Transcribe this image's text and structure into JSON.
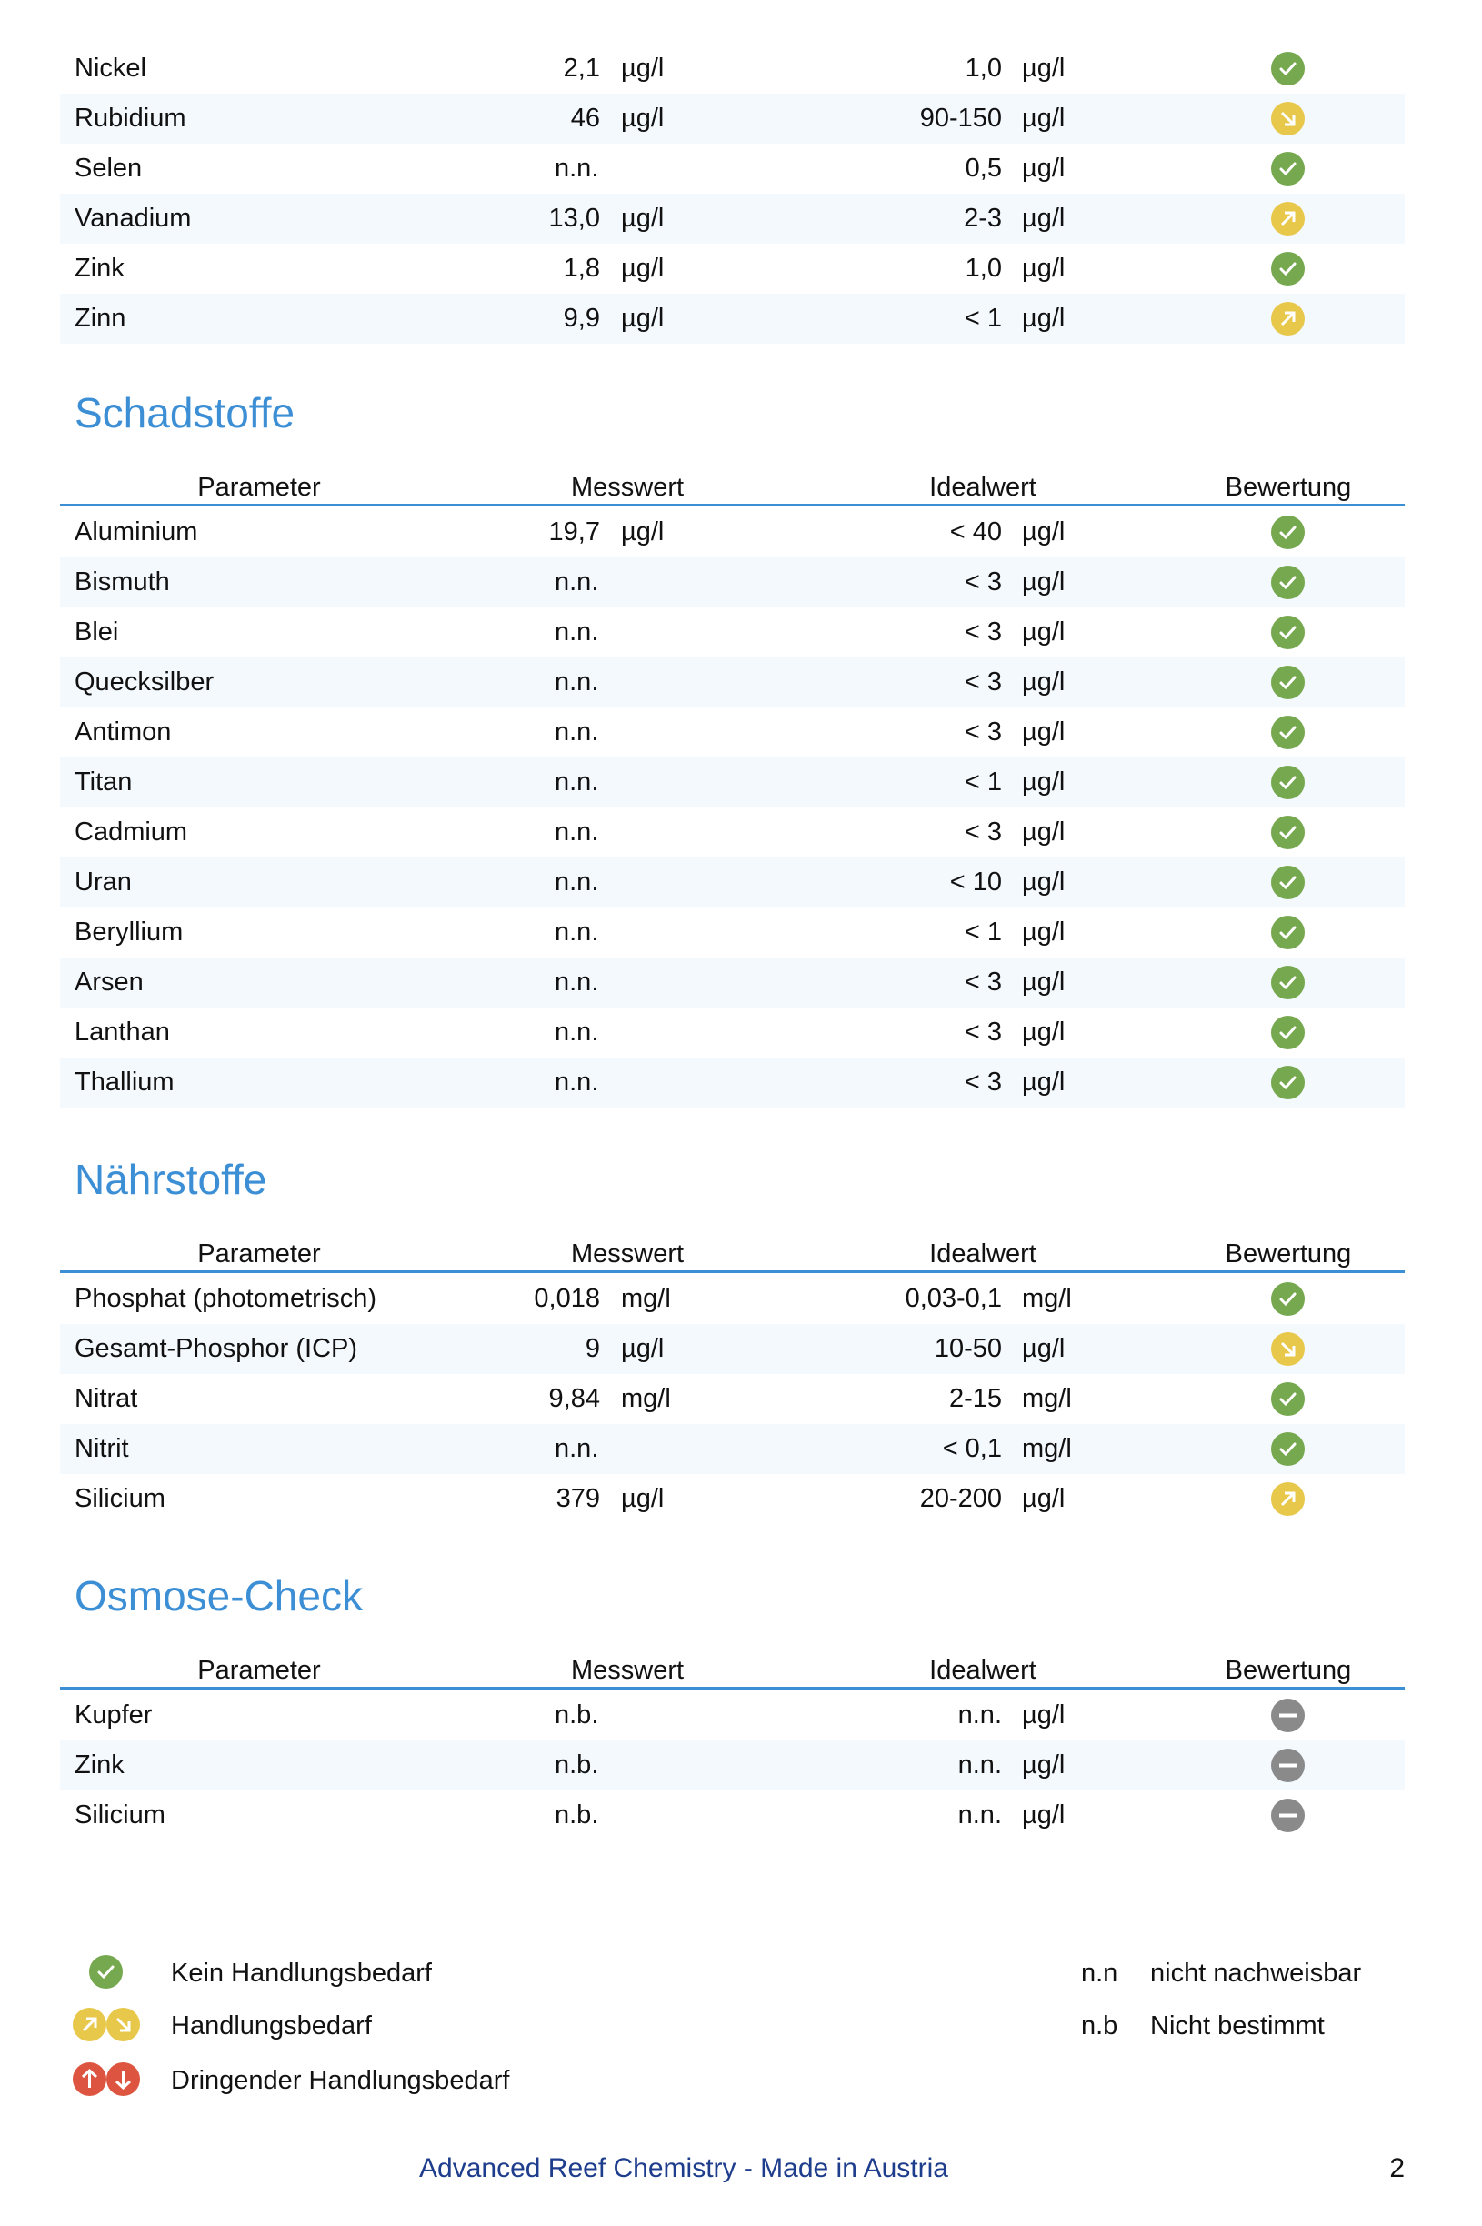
{
  "colors": {
    "accent": "#3c8fd5",
    "ok": "#76a94f",
    "warn": "#e8c84a",
    "urgent": "#dd5540",
    "none": "#8a8a8a",
    "footer": "#1e3d8c"
  },
  "headers": {
    "parameter": "Parameter",
    "messwert": "Messwert",
    "idealwert": "Idealwert",
    "bewertung": "Bewertung"
  },
  "sections": [
    {
      "title": "",
      "show_header": false,
      "rows": [
        {
          "name": "Nickel",
          "value": "2,1",
          "unit": "µg/l",
          "ideal": "1,0",
          "ideal_unit": "µg/l",
          "status": "ok"
        },
        {
          "name": "Rubidium",
          "value": "46",
          "unit": "µg/l",
          "ideal": "90-150",
          "ideal_unit": "µg/l",
          "status": "down"
        },
        {
          "name": "Selen",
          "value": "n.n.",
          "unit": "",
          "ideal": "0,5",
          "ideal_unit": "µg/l",
          "status": "ok"
        },
        {
          "name": "Vanadium",
          "value": "13,0",
          "unit": "µg/l",
          "ideal": "2-3",
          "ideal_unit": "µg/l",
          "status": "up"
        },
        {
          "name": "Zink",
          "value": "1,8",
          "unit": "µg/l",
          "ideal": "1,0",
          "ideal_unit": "µg/l",
          "status": "ok"
        },
        {
          "name": "Zinn",
          "value": "9,9",
          "unit": "µg/l",
          "ideal": "< 1",
          "ideal_unit": "µg/l",
          "status": "up"
        }
      ]
    },
    {
      "title": "Schadstoffe",
      "show_header": true,
      "rows": [
        {
          "name": "Aluminium",
          "value": "19,7",
          "unit": "µg/l",
          "ideal": "< 40",
          "ideal_unit": "µg/l",
          "status": "ok"
        },
        {
          "name": "Bismuth",
          "value": "n.n.",
          "unit": "",
          "ideal": "< 3",
          "ideal_unit": "µg/l",
          "status": "ok"
        },
        {
          "name": "Blei",
          "value": "n.n.",
          "unit": "",
          "ideal": "< 3",
          "ideal_unit": "µg/l",
          "status": "ok"
        },
        {
          "name": "Quecksilber",
          "value": "n.n.",
          "unit": "",
          "ideal": "< 3",
          "ideal_unit": "µg/l",
          "status": "ok"
        },
        {
          "name": "Antimon",
          "value": "n.n.",
          "unit": "",
          "ideal": "< 3",
          "ideal_unit": "µg/l",
          "status": "ok"
        },
        {
          "name": "Titan",
          "value": "n.n.",
          "unit": "",
          "ideal": "< 1",
          "ideal_unit": "µg/l",
          "status": "ok"
        },
        {
          "name": "Cadmium",
          "value": "n.n.",
          "unit": "",
          "ideal": "< 3",
          "ideal_unit": "µg/l",
          "status": "ok"
        },
        {
          "name": "Uran",
          "value": "n.n.",
          "unit": "",
          "ideal": "< 10",
          "ideal_unit": "µg/l",
          "status": "ok"
        },
        {
          "name": "Beryllium",
          "value": "n.n.",
          "unit": "",
          "ideal": "< 1",
          "ideal_unit": "µg/l",
          "status": "ok"
        },
        {
          "name": "Arsen",
          "value": "n.n.",
          "unit": "",
          "ideal": "< 3",
          "ideal_unit": "µg/l",
          "status": "ok"
        },
        {
          "name": "Lanthan",
          "value": "n.n.",
          "unit": "",
          "ideal": "< 3",
          "ideal_unit": "µg/l",
          "status": "ok"
        },
        {
          "name": "Thallium",
          "value": "n.n.",
          "unit": "",
          "ideal": "< 3",
          "ideal_unit": "µg/l",
          "status": "ok"
        }
      ]
    },
    {
      "title": "Nährstoffe",
      "show_header": true,
      "rows": [
        {
          "name": "Phosphat (photometrisch)",
          "value": "0,018",
          "unit": "mg/l",
          "ideal": "0,03-0,1",
          "ideal_unit": "mg/l",
          "status": "ok"
        },
        {
          "name": "Gesamt-Phosphor (ICP)",
          "value": "9",
          "unit": "µg/l",
          "ideal": "10-50",
          "ideal_unit": "µg/l",
          "status": "down"
        },
        {
          "name": "Nitrat",
          "value": "9,84",
          "unit": "mg/l",
          "ideal": "2-15",
          "ideal_unit": "mg/l",
          "status": "ok"
        },
        {
          "name": "Nitrit",
          "value": "n.n.",
          "unit": "",
          "ideal": "< 0,1",
          "ideal_unit": "mg/l",
          "status": "ok"
        },
        {
          "name": "Silicium",
          "value": "379",
          "unit": "µg/l",
          "ideal": "20-200",
          "ideal_unit": "µg/l",
          "status": "up"
        }
      ]
    },
    {
      "title": "Osmose-Check",
      "show_header": true,
      "rows": [
        {
          "name": "Kupfer",
          "value": "n.b.",
          "unit": "",
          "ideal": "n.n.",
          "ideal_unit": "µg/l",
          "status": "none"
        },
        {
          "name": "Zink",
          "value": "n.b.",
          "unit": "",
          "ideal": "n.n.",
          "ideal_unit": "µg/l",
          "status": "none"
        },
        {
          "name": "Silicium",
          "value": "n.b.",
          "unit": "",
          "ideal": "n.n.",
          "ideal_unit": "µg/l",
          "status": "none"
        }
      ]
    }
  ],
  "legend": {
    "items": [
      {
        "label": "Kein Handlungsbedarf",
        "icons": [
          "ok"
        ]
      },
      {
        "label": "Handlungsbedarf",
        "icons": [
          "up",
          "down"
        ]
      },
      {
        "label": "Dringender Handlungsbedarf",
        "icons": [
          "urgent-up",
          "urgent-down"
        ]
      }
    ],
    "abbreviations": [
      {
        "abbr": "n.n",
        "meaning": "nicht nachweisbar"
      },
      {
        "abbr": "n.b",
        "meaning": "Nicht bestimmt"
      }
    ]
  },
  "footer": {
    "text": "Advanced Reef Chemistry - Made in Austria",
    "page": "2"
  }
}
